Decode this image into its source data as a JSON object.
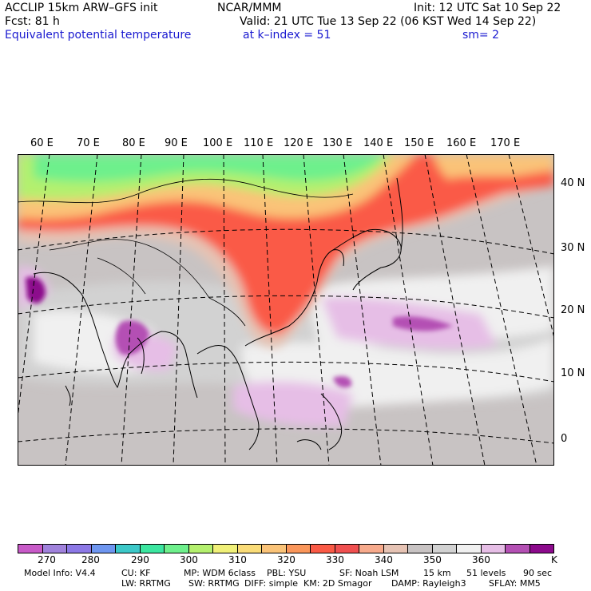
{
  "header": {
    "line1_left": "ACCLIP 15km ARW–GFS init",
    "line1_center": "NCAR/MMM",
    "line1_right": "Init: 12 UTC Sat 10 Sep 22",
    "line2_left": "Fcst:   81 h",
    "line2_right": "Valid: 21 UTC Tue 13 Sep 22 (06 KST Wed 14 Sep 22)",
    "line3_left": "Equivalent potential temperature",
    "line3_center": "at k–index =  51",
    "line3_right": "sm= 2"
  },
  "map": {
    "lon_labels": [
      "60 E",
      "70 E",
      "80 E",
      "90 E",
      "100 E",
      "110 E",
      "120 E",
      "130 E",
      "140 E",
      "150 E",
      "160 E",
      "170 E"
    ],
    "lat_labels": [
      "40 N",
      "30 N",
      "20 N",
      "10 N",
      "0"
    ]
  },
  "colorbar": {
    "unit": "K",
    "colors": [
      "#c85ac8",
      "#a082dc",
      "#8c78e6",
      "#6e96f0",
      "#3cc8c8",
      "#3ce6a0",
      "#6ef08c",
      "#b4f06e",
      "#f0f078",
      "#fadc78",
      "#fac378",
      "#fa965a",
      "#fa5a46",
      "#f05050",
      "#f7aa8c",
      "#e6c3b4",
      "#c8c3c3",
      "#d2d2d2",
      "#f0f0f0",
      "#e6bee6",
      "#b450b4",
      "#8c0a8c"
    ],
    "labels": [
      "270",
      "280",
      "290",
      "300",
      "310",
      "320",
      "330",
      "340",
      "350",
      "360"
    ]
  },
  "footer": {
    "row1": [
      "Model Info: V4.4",
      "CU: KF",
      "MP: WDM 6class",
      "PBL: YSU",
      "SF: Noah LSM",
      "15 km",
      "51 levels",
      "90 sec"
    ],
    "row2": [
      "LW: RRTMG",
      "SW: RRTMG",
      "DIFF: simple",
      "KM: 2D Smagor",
      "DAMP: Rayleigh3",
      "SFLAY: MM5"
    ]
  }
}
